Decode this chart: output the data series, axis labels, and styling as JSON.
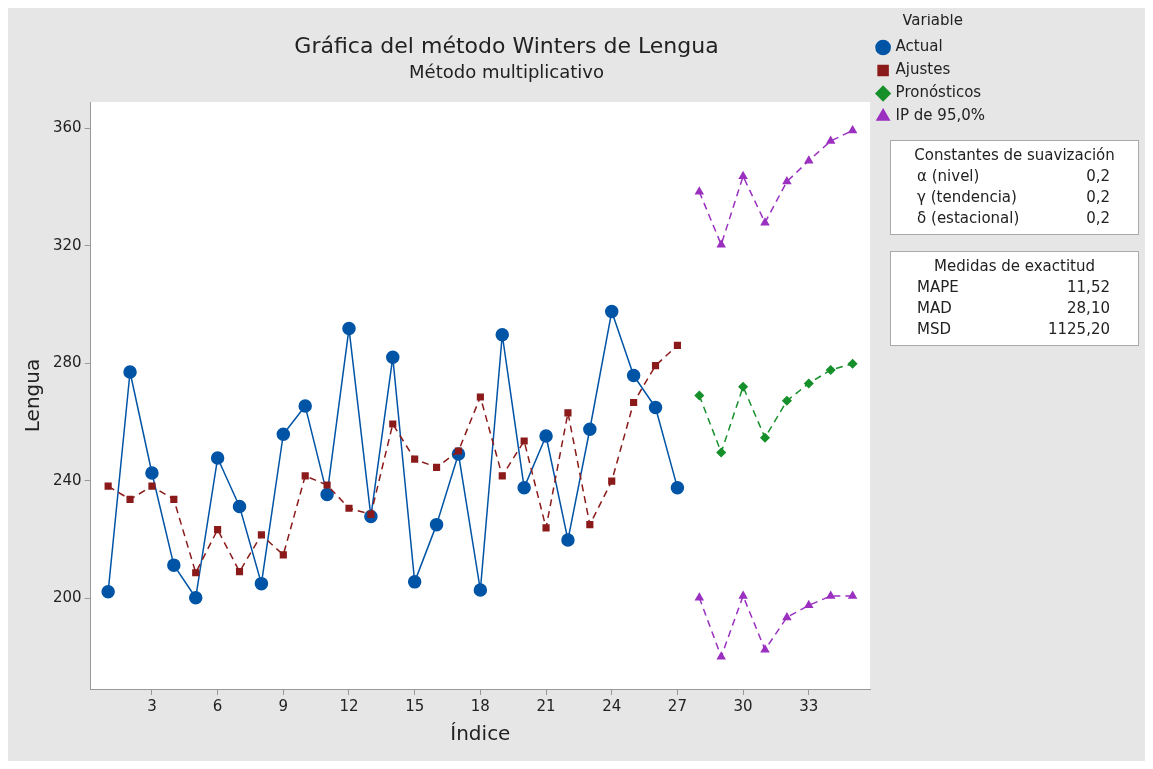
{
  "chart_data": {
    "type": "line",
    "title": "Gráfica del método Winters de Lengua",
    "subtitle": "Método multiplicativo",
    "xlabel": "Índice",
    "ylabel": "Lengua",
    "legend_title": "Variable",
    "legend": "top right",
    "grid": false,
    "xlim": [
      0.2,
      35.8
    ],
    "xticks": [
      3,
      6,
      9,
      12,
      15,
      18,
      21,
      24,
      27,
      30,
      33
    ],
    "ylim": [
      169,
      369
    ],
    "yticks": [
      200,
      240,
      280,
      320,
      360
    ],
    "series": [
      {
        "name": "Actual",
        "color": "#0054a6",
        "marker": "circle",
        "line_style": "solid",
        "x": [
          1,
          2,
          3,
          4,
          5,
          6,
          7,
          8,
          9,
          10,
          11,
          12,
          13,
          14,
          15,
          16,
          17,
          18,
          19,
          20,
          21,
          22,
          23,
          24,
          25,
          26,
          27
        ],
        "values": [
          202.1,
          277,
          242.6,
          211.2,
          200.1,
          247.7,
          231.2,
          204.9,
          255.8,
          265.4,
          235.3,
          291.8,
          227.8,
          282,
          205.5,
          225,
          249.1,
          202.7,
          289.7,
          237.6,
          255.2,
          219.8,
          257.5,
          297.6,
          275.8,
          264.9,
          237.6
        ]
      },
      {
        "name": "Ajustes",
        "color": "#8b1a1a",
        "marker": "square",
        "line_style": "dashed",
        "x": [
          1,
          2,
          3,
          4,
          5,
          6,
          7,
          8,
          9,
          10,
          11,
          12,
          13,
          14,
          15,
          16,
          17,
          18,
          19,
          20,
          21,
          22,
          23,
          24,
          25,
          26,
          27
        ],
        "values": [
          238.1,
          233.6,
          238.1,
          233.6,
          208.6,
          223.3,
          209,
          221.5,
          214.7,
          241.6,
          238.5,
          230.6,
          228.5,
          259.3,
          247.3,
          244.5,
          250.1,
          268.5,
          241.6,
          253.5,
          223.9,
          263.1,
          225,
          239.8,
          266.6,
          279.2,
          286.1
        ]
      },
      {
        "name": "Pronósticos",
        "color": "#16902a",
        "marker": "diamond",
        "line_style": "dashed",
        "x": [
          28,
          29,
          30,
          31,
          32,
          33,
          34,
          35
        ],
        "values": [
          269,
          249.6,
          272,
          254.6,
          267.2,
          273.1,
          277.7,
          279.8
        ]
      },
      {
        "name": "IP de 95,0%",
        "color": "#9b30c0",
        "marker": "triangle",
        "line_style": "dashed",
        "x": [
          28,
          29,
          30,
          31,
          32,
          33,
          34,
          35
        ],
        "values": [
          338.4,
          320.4,
          343.7,
          327.9,
          341.9,
          349,
          355.7,
          359.3
        ]
      },
      {
        "color": "#9b30c0",
        "marker": "triangle",
        "line_style": "dashed",
        "x": [
          28,
          29,
          30,
          31,
          32,
          33,
          34,
          35
        ],
        "values": [
          200.1,
          180,
          200.7,
          182.4,
          193.4,
          197.5,
          200.7,
          200.7
        ]
      }
    ],
    "annotations": [
      "Constantes de suavización",
      "α (nivel)",
      "0,2",
      "γ (tendencia)",
      "0,2",
      "δ (estacional)",
      "0,2",
      "Medidas de exactitud",
      "MAPE",
      "11,52",
      "MAD",
      "28,10",
      "MSD",
      "1125,20"
    ]
  }
}
